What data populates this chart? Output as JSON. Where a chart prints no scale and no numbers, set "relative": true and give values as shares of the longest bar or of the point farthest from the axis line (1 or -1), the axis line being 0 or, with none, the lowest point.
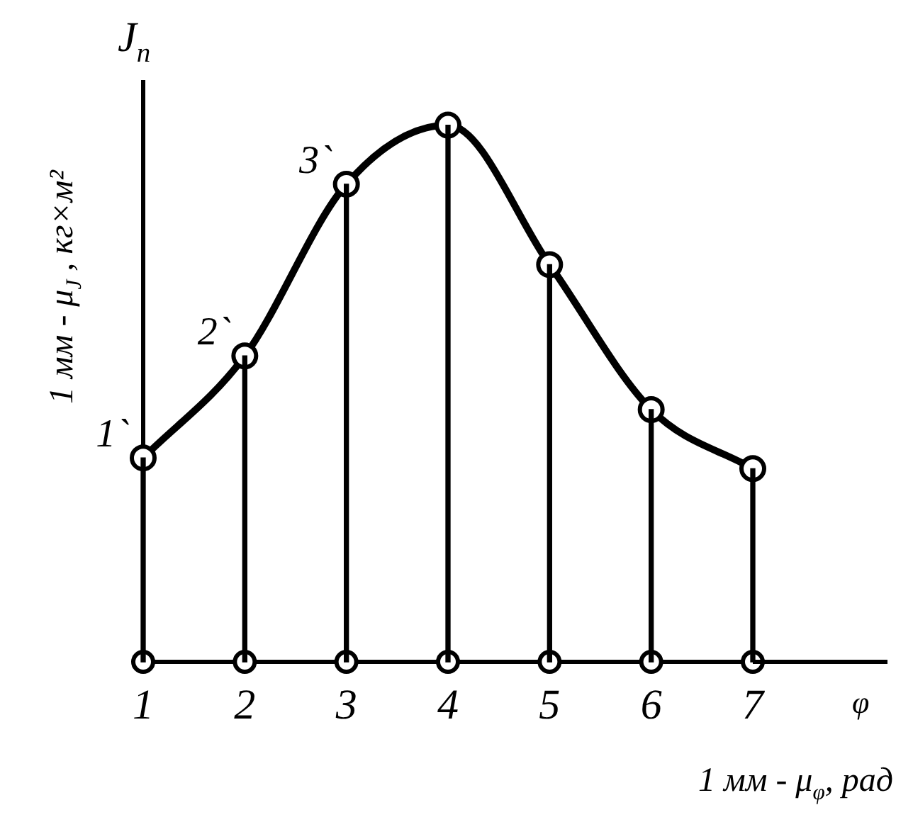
{
  "chart_data": {
    "type": "line",
    "relative": true,
    "marker": "circle",
    "ylabel": "J$_{n}$",
    "xlabel": "φ",
    "categories": [
      "1",
      "2",
      "3",
      "4",
      "5",
      "6",
      "7"
    ],
    "series": [
      {
        "color": "#000000",
        "values": [
          0.38,
          0.57,
          0.89,
          1,
          0.74,
          0.47,
          0.36
        ]
      },
      {
        "type": "bar",
        "color": "#000000",
        "values": [
          0.38,
          0.57,
          0.89,
          1,
          0.74,
          0.47,
          0.36
        ]
      },
      {
        "type": "scatter",
        "color": "#000000",
        "values": [
          0,
          0,
          0,
          0,
          0,
          0,
          0
        ]
      }
    ],
    "annotations": [
      {
        "text": "1`",
        "x": "1",
        "y": 0.38
      },
      {
        "text": "2`",
        "x": "2",
        "y": 0.57
      },
      {
        "text": "3`",
        "x": "3",
        "y": 0.89
      },
      "1 мм - μ$_{J}$ , кг×м²",
      "1 мм - μ$_{φ}$, рад"
    ]
  }
}
